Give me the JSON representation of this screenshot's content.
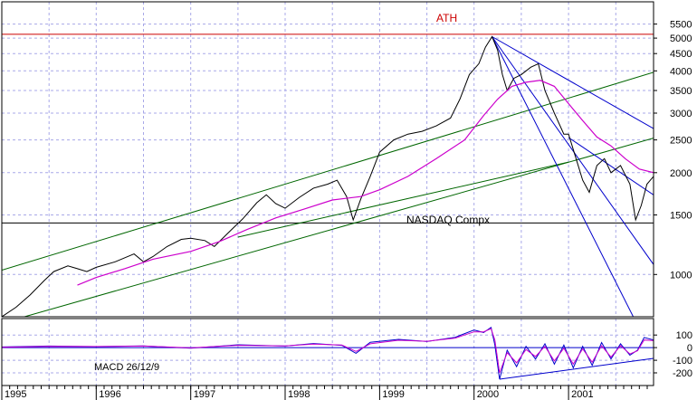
{
  "chart_data": [
    {
      "type": "line",
      "y_scale": "log",
      "ylim": [
        750,
        6400
      ],
      "xlim": [
        1995.0,
        2001.9
      ],
      "x_tick_labels": [
        "1995",
        "1996",
        "1997",
        "1998",
        "1999",
        "2000",
        "2001"
      ],
      "x_tick_values": [
        1995.0,
        1996.0,
        1997.0,
        1998.0,
        1999.0,
        2000.0,
        2001.0
      ],
      "y_tick_labels": [
        "5500",
        "5000",
        "4500",
        "4000",
        "3500",
        "3000",
        "2500",
        "2000",
        "1500",
        "1000"
      ],
      "y_tick_values": [
        5500,
        5000,
        4500,
        4000,
        3500,
        3000,
        2500,
        2000,
        1500,
        1000
      ],
      "grid": true,
      "annotations": [
        {
          "id": "ath",
          "text": "ATH",
          "color": "#cc0000"
        },
        {
          "id": "name",
          "text": "NASDAQ Compx",
          "color": "#000000"
        }
      ],
      "horizontal_lines": [
        {
          "id": "ath-line",
          "y": 5130,
          "color": "#cc0000"
        },
        {
          "id": "support-line",
          "y": 1420,
          "color": "#000000"
        }
      ],
      "trend_lines": [
        {
          "id": "channel-upper",
          "color": "#006600",
          "x": [
            1995.0,
            2001.9
          ],
          "y": [
            1030,
            3960
          ]
        },
        {
          "id": "channel-middle",
          "color": "#006600",
          "x": [
            1995.0,
            2001.9
          ],
          "y": [
            718,
            2530
          ]
        },
        {
          "id": "channel-lower",
          "color": "#006600",
          "x": [
            1997.5,
            2001.0
          ],
          "y": [
            1290,
            2150
          ]
        },
        {
          "id": "down-steep",
          "color": "#0000cc",
          "x": [
            2000.19,
            2001.9
          ],
          "y": [
            5050,
            570
          ]
        },
        {
          "id": "down-mid",
          "color": "#0000cc",
          "x": [
            2000.19,
            2001.9
          ],
          "y": [
            5050,
            1070
          ]
        },
        {
          "id": "down-shallow",
          "color": "#0000cc",
          "x": [
            2000.19,
            2001.9
          ],
          "y": [
            5050,
            2700
          ]
        },
        {
          "id": "down-short",
          "color": "#0000cc",
          "x": [
            2001.0,
            2001.9
          ],
          "y": [
            2540,
            1720
          ]
        }
      ],
      "series": [
        {
          "color": "#000000",
          "x": [
            1995.0,
            1995.15,
            1995.3,
            1995.45,
            1995.55,
            1995.7,
            1995.8,
            1995.9,
            1996.0,
            1996.2,
            1996.4,
            1996.5,
            1996.6,
            1996.75,
            1996.9,
            1997.0,
            1997.15,
            1997.25,
            1997.4,
            1997.55,
            1997.7,
            1997.8,
            1997.9,
            1998.0,
            1998.15,
            1998.3,
            1998.45,
            1998.55,
            1998.65,
            1998.72,
            1998.8,
            1998.9,
            1999.0,
            1999.15,
            1999.3,
            1999.45,
            1999.6,
            1999.75,
            1999.85,
            1999.95,
            2000.05,
            2000.12,
            2000.19,
            2000.25,
            2000.3,
            2000.35,
            2000.42,
            2000.5,
            2000.6,
            2000.68,
            2000.75,
            2000.85,
            2000.95,
            2001.0,
            2001.08,
            2001.15,
            2001.22,
            2001.3,
            2001.38,
            2001.45,
            2001.55,
            2001.65,
            2001.71,
            2001.77,
            2001.83,
            2001.9
          ],
          "y": [
            750,
            800,
            870,
            960,
            1020,
            1060,
            1040,
            1020,
            1050,
            1090,
            1150,
            1090,
            1130,
            1210,
            1270,
            1280,
            1260,
            1210,
            1330,
            1460,
            1630,
            1720,
            1620,
            1570,
            1690,
            1800,
            1850,
            1900,
            1700,
            1450,
            1670,
            1950,
            2300,
            2500,
            2600,
            2650,
            2750,
            2900,
            3300,
            3900,
            4200,
            4700,
            5050,
            4600,
            3900,
            3500,
            3800,
            3900,
            4100,
            4200,
            3500,
            3000,
            2600,
            2600,
            2200,
            1900,
            1750,
            2100,
            2200,
            2000,
            2100,
            1850,
            1450,
            1600,
            1850,
            1950
          ]
        },
        {
          "color": "#cc00cc",
          "x": [
            1995.8,
            1996.0,
            1996.3,
            1996.6,
            1997.0,
            1997.3,
            1997.6,
            1997.9,
            1998.2,
            1998.5,
            1998.8,
            1999.0,
            1999.3,
            1999.6,
            1999.9,
            2000.1,
            2000.25,
            2000.4,
            2000.55,
            2000.7,
            2000.85,
            2001.0,
            2001.15,
            2001.3,
            2001.45,
            2001.6,
            2001.75,
            2001.9
          ],
          "y": [
            930,
            980,
            1040,
            1110,
            1170,
            1250,
            1360,
            1470,
            1560,
            1660,
            1700,
            1780,
            1950,
            2200,
            2500,
            2950,
            3300,
            3600,
            3700,
            3750,
            3600,
            3200,
            2850,
            2550,
            2400,
            2200,
            2050,
            2000
          ]
        }
      ]
    },
    {
      "type": "line",
      "title": "MACD 26/12/9",
      "ylim": [
        -300,
        230
      ],
      "y_tick_labels": [
        "100",
        "0",
        "-100",
        "-200"
      ],
      "y_tick_values": [
        100,
        0,
        -100,
        -200
      ],
      "grid": true,
      "trend_lines": [
        {
          "id": "macd-trend",
          "color": "#0000cc",
          "x": [
            2000.27,
            2001.9
          ],
          "y": [
            -250,
            -85
          ]
        }
      ],
      "series": [
        {
          "color": "#0000cc",
          "x": [
            1995.0,
            1995.5,
            1996.0,
            1996.5,
            1997.0,
            1997.5,
            1998.0,
            1998.3,
            1998.6,
            1998.75,
            1998.9,
            1999.2,
            1999.5,
            1999.8,
            2000.0,
            2000.1,
            2000.18,
            2000.22,
            2000.27,
            2000.35,
            2000.45,
            2000.55,
            2000.65,
            2000.75,
            2000.85,
            2000.95,
            2001.05,
            2001.15,
            2001.25,
            2001.35,
            2001.45,
            2001.55,
            2001.65,
            2001.73,
            2001.8,
            2001.9
          ],
          "y": [
            5,
            12,
            8,
            14,
            -5,
            22,
            12,
            32,
            18,
            -45,
            42,
            65,
            48,
            82,
            140,
            120,
            160,
            20,
            -250,
            -20,
            -150,
            10,
            -90,
            30,
            -130,
            20,
            -160,
            10,
            -140,
            40,
            -90,
            30,
            -60,
            -20,
            80,
            60
          ]
        },
        {
          "color": "#cc00cc",
          "x": [
            1995.0,
            1995.5,
            1996.0,
            1996.5,
            1997.0,
            1997.5,
            1998.0,
            1998.3,
            1998.6,
            1998.75,
            1998.9,
            1999.2,
            1999.5,
            1999.8,
            2000.0,
            2000.1,
            2000.18,
            2000.22,
            2000.27,
            2000.35,
            2000.45,
            2000.55,
            2000.65,
            2000.75,
            2000.85,
            2000.95,
            2001.05,
            2001.15,
            2001.25,
            2001.35,
            2001.45,
            2001.55,
            2001.65,
            2001.73,
            2001.8,
            2001.9
          ],
          "y": [
            3,
            10,
            9,
            12,
            -2,
            18,
            14,
            28,
            20,
            -30,
            30,
            58,
            50,
            75,
            125,
            125,
            150,
            60,
            -200,
            -40,
            -120,
            -15,
            -70,
            10,
            -105,
            -5,
            -130,
            -10,
            -115,
            15,
            -75,
            15,
            -50,
            -25,
            60,
            55
          ]
        }
      ]
    }
  ]
}
